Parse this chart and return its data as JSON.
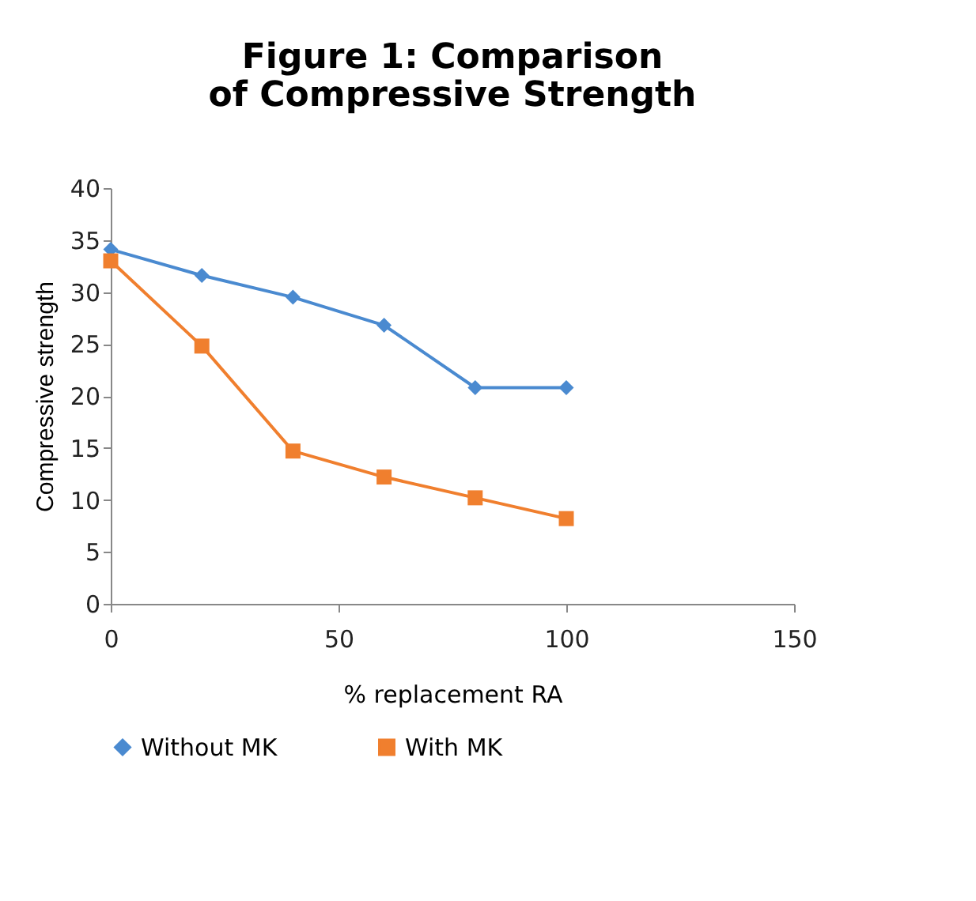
{
  "chart_data": {
    "type": "line",
    "title": "Figure 1: Comparison of Compressive Strength",
    "xlabel": "% replacement RA",
    "ylabel": "Compressive strength",
    "x": [
      0,
      20,
      40,
      60,
      80,
      100
    ],
    "series": [
      {
        "name": "Without MK",
        "color": "#4a8ad0",
        "marker": "diamond",
        "values": [
          34.1,
          31.6,
          29.5,
          26.8,
          20.8,
          20.8
        ]
      },
      {
        "name": "With MK",
        "color": "#f07f2e",
        "marker": "square",
        "values": [
          33.0,
          24.8,
          14.7,
          12.2,
          10.2,
          8.2
        ]
      }
    ],
    "xlim": [
      0,
      150
    ],
    "xticks": [
      0,
      50,
      100,
      150
    ],
    "ylim": [
      0,
      40
    ],
    "yticks": [
      0,
      5,
      10,
      15,
      20,
      25,
      30,
      35,
      40
    ],
    "grid": false,
    "legend": "bottom"
  }
}
